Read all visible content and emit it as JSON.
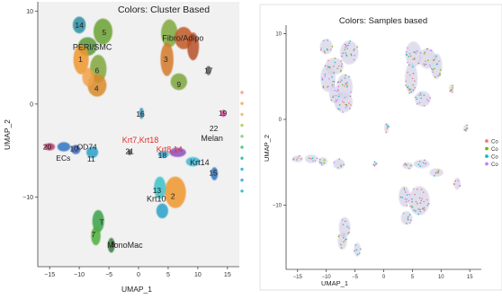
{
  "chart_data": [
    {
      "type": "scatter",
      "title": "Colors: Cluster Based",
      "xlabel": "UMAP_1",
      "ylabel": "UMAP_2",
      "xlim": [
        -17,
        17
      ],
      "ylim": [
        -17.5,
        11
      ],
      "xticks": [
        -15,
        -10,
        -5,
        0,
        5,
        10,
        15
      ],
      "yticks": [
        -10,
        0,
        10
      ],
      "xtick_labels": [
        "−15",
        "−10",
        "−5",
        "0",
        "5",
        "10",
        "15"
      ],
      "ytick_labels": [
        "−10",
        "0",
        "10"
      ],
      "grid": false,
      "background": "#f1f1f1",
      "cluster_labels": [
        {
          "text": "14",
          "x": -10.0,
          "y": 8.5,
          "color": "#222222"
        },
        {
          "text": "5",
          "x": -5.8,
          "y": 7.7,
          "color": "#222222"
        },
        {
          "text": "PERI/SMC",
          "x": -7.8,
          "y": 6.1,
          "color": "#222222"
        },
        {
          "text": "1",
          "x": -9.8,
          "y": 4.8,
          "color": "#222222"
        },
        {
          "text": "6",
          "x": -7.0,
          "y": 3.6,
          "color": "#222222"
        },
        {
          "text": "4",
          "x": -7.1,
          "y": 1.7,
          "color": "#222222"
        },
        {
          "text": "Fibro/Adipo",
          "x": 7.5,
          "y": 7.1,
          "color": "#222222"
        },
        {
          "text": "3",
          "x": 4.6,
          "y": 4.8,
          "color": "#222222"
        },
        {
          "text": "9",
          "x": 6.8,
          "y": 2.1,
          "color": "#222222"
        },
        {
          "text": "17",
          "x": 11.8,
          "y": 3.6,
          "color": "#222222"
        },
        {
          "text": "16",
          "x": 0.3,
          "y": -1.1,
          "color": "#222222"
        },
        {
          "text": "19",
          "x": 14.2,
          "y": -1.0,
          "color": "#222222"
        },
        {
          "text": "Krt7,Krt18",
          "x": 0.3,
          "y": -3.9,
          "color": "#e0302d"
        },
        {
          "text": "22",
          "x": 12.7,
          "y": -2.6,
          "color": "#222222"
        },
        {
          "text": "Melan",
          "x": 12.4,
          "y": -3.7,
          "color": "#222222"
        },
        {
          "text": "20",
          "x": -15.4,
          "y": -4.6,
          "color": "#222222"
        },
        {
          "text": "OD74",
          "x": -8.7,
          "y": -4.6,
          "color": "#222222"
        },
        {
          "text": "10",
          "x": -10.9,
          "y": -4.8,
          "color": "#222222"
        },
        {
          "text": "21",
          "x": -1.5,
          "y": -5.1,
          "color": "#222222"
        },
        {
          "text": "Krt8,14",
          "x": 5.2,
          "y": -4.9,
          "color": "#e0302d"
        },
        {
          "text": "18",
          "x": 4.0,
          "y": -5.5,
          "color": "#222222"
        },
        {
          "text": "ECs",
          "x": -12.7,
          "y": -5.8,
          "color": "#222222"
        },
        {
          "text": "11",
          "x": -8.0,
          "y": -5.9,
          "color": "#222222"
        },
        {
          "text": "Krt14",
          "x": 10.3,
          "y": -6.3,
          "color": "#222222"
        },
        {
          "text": "15",
          "x": 12.6,
          "y": -7.4,
          "color": "#222222"
        },
        {
          "text": "13",
          "x": 3.1,
          "y": -9.3,
          "color": "#222222"
        },
        {
          "text": "2",
          "x": 5.8,
          "y": -9.9,
          "color": "#222222"
        },
        {
          "text": "Krt10",
          "x": 3.0,
          "y": -10.2,
          "color": "#222222"
        },
        {
          "text": "T",
          "x": -6.2,
          "y": -12.7,
          "color": "#222222"
        },
        {
          "text": "7",
          "x": -7.6,
          "y": -14.0,
          "color": "#222222"
        },
        {
          "text": "8",
          "x": -4.3,
          "y": -15.1,
          "color": "#222222"
        },
        {
          "text": "MonoMac",
          "x": -2.3,
          "y": -15.2,
          "color": "#222222"
        }
      ],
      "legend_placement": "right",
      "legend_colors": [
        "#f2a88a",
        "#f2b36a",
        "#e8c86a",
        "#b5d36a",
        "#8fd18a",
        "#57c98f",
        "#3dc4b2",
        "#42bcd6",
        "#4fb0e6",
        "#3ac3c9"
      ]
    },
    {
      "type": "scatter",
      "title": "Colors: Samples based",
      "xlabel": "UMAP_1",
      "ylabel": "UMAP_2",
      "xlim": [
        -17,
        17
      ],
      "ylim": [
        -17.5,
        11
      ],
      "xticks": [
        -15,
        -10,
        -5,
        0,
        5,
        10,
        15
      ],
      "yticks": [
        -10,
        0,
        10
      ],
      "xtick_labels": [
        "−15",
        "−10",
        "−5",
        "0",
        "5",
        "10",
        "15"
      ],
      "ytick_labels": [
        "−10",
        "0",
        "10"
      ],
      "grid": false,
      "background": "#ffffff",
      "legend_placement": "right",
      "legend": [
        {
          "label": "Co",
          "color": "#f8766d"
        },
        {
          "label": "Co",
          "color": "#7cae00"
        },
        {
          "label": "Co",
          "color": "#00bfc4"
        },
        {
          "label": "Co",
          "color": "#c77cff"
        }
      ]
    }
  ]
}
